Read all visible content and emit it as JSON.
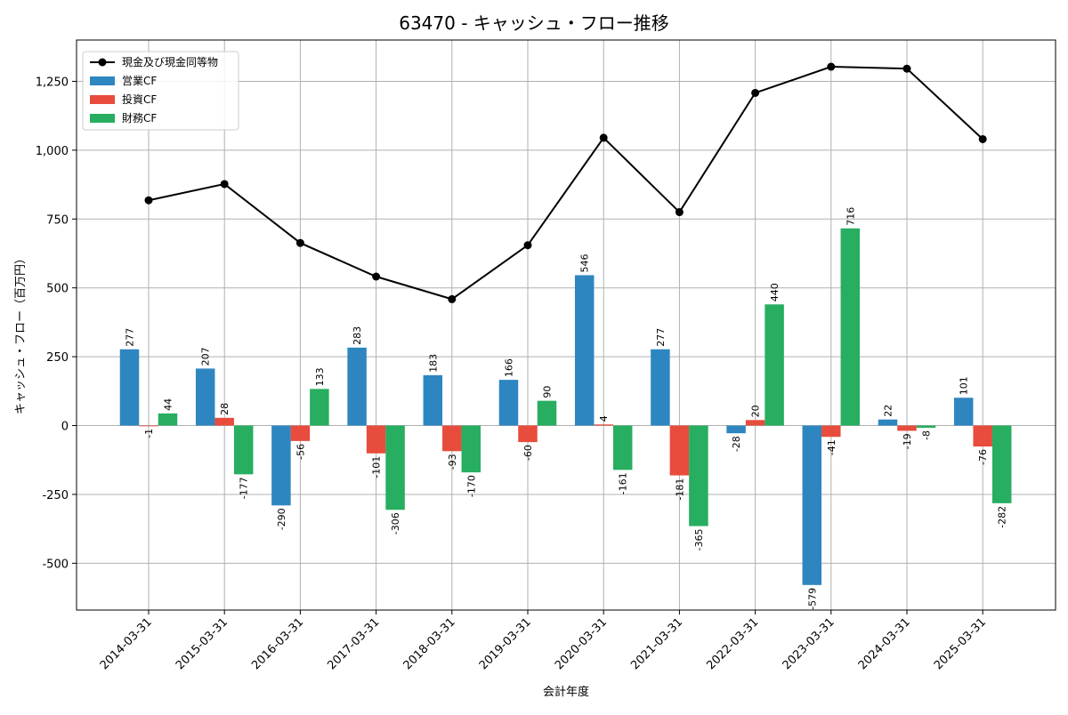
{
  "chart_data": {
    "type": "bar",
    "title": "63470 - キャッシュ・フロー推移",
    "xlabel": "会計年度",
    "ylabel": "キャッシュ・フロー（百万円）",
    "ylim": [
      -670,
      1400
    ],
    "yticks": [
      -500,
      -250,
      0,
      250,
      500,
      750,
      1000,
      1250
    ],
    "ytick_labels": [
      "-500",
      "-250",
      "0",
      "250",
      "500",
      "750",
      "1,000",
      "1,250"
    ],
    "grid": true,
    "legend_position": "top-left",
    "categories": [
      "2014-03-31",
      "2015-03-31",
      "2016-03-31",
      "2017-03-31",
      "2018-03-31",
      "2019-03-31",
      "2020-03-31",
      "2021-03-31",
      "2022-03-31",
      "2023-03-31",
      "2024-03-31",
      "2025-03-31"
    ],
    "series": [
      {
        "name": "営業CF",
        "type": "bar",
        "color": "#2e86c1",
        "values": [
          277,
          207,
          -290,
          283,
          183,
          166,
          546,
          277,
          -28,
          -579,
          22,
          101
        ],
        "labels": [
          "277",
          "207",
          "-290",
          "283",
          "183",
          "166",
          "546",
          "277",
          "-28",
          "-579",
          "22",
          "101"
        ]
      },
      {
        "name": "投資CF",
        "type": "bar",
        "color": "#e74c3c",
        "values": [
          -1,
          28,
          -56,
          -101,
          -93,
          -60,
          4,
          -181,
          20,
          -41,
          -19,
          -76
        ],
        "labels": [
          "-1",
          "28",
          "-56",
          "-101",
          "-93",
          "-60",
          "4",
          "-181",
          "20",
          "-41",
          "-19",
          "-76"
        ]
      },
      {
        "name": "財務CF",
        "type": "bar",
        "color": "#27ae60",
        "values": [
          44,
          -177,
          133,
          -306,
          -170,
          90,
          -161,
          -365,
          440,
          716,
          -8,
          -282
        ],
        "labels": [
          "44",
          "-177",
          "133",
          "-306",
          "-170",
          "90",
          "-161",
          "-365",
          "440",
          "716",
          "-8",
          "-282"
        ]
      },
      {
        "name": "現金及び現金同等物",
        "type": "line",
        "color": "#000000",
        "values": [
          818,
          877,
          663,
          541,
          459,
          655,
          1045,
          775,
          1208,
          1303,
          1296,
          1040
        ]
      }
    ]
  }
}
